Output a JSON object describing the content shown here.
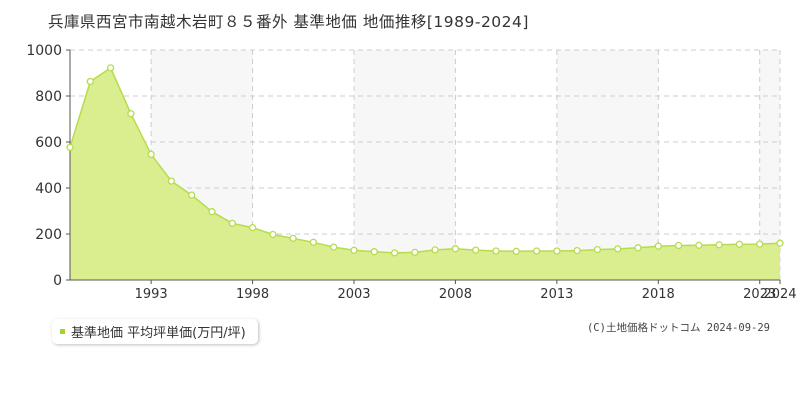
{
  "title": "兵庫県西宮市南越木岩町８５番外 基準地価 地価推移[1989-2024]",
  "legend_label": "基準地価 平均坪単価(万円/坪)",
  "credit": "(C)土地価格ドットコム 2024-09-29",
  "colors": {
    "area_fill": "#dbee8f",
    "line": "#b5dc4e",
    "marker_fill": "#ffffff",
    "marker_stroke": "#b5dc4e",
    "grid": "#cccccc",
    "plot_bg_shade": "#f7f7f7",
    "legend_swatch": "#a6d329"
  },
  "chart_data": {
    "type": "area",
    "x": [
      1989,
      1990,
      1991,
      1992,
      1993,
      1994,
      1995,
      1996,
      1997,
      1998,
      1999,
      2000,
      2001,
      2002,
      2003,
      2004,
      2005,
      2006,
      2007,
      2008,
      2009,
      2010,
      2011,
      2012,
      2013,
      2014,
      2015,
      2016,
      2017,
      2018,
      2019,
      2020,
      2021,
      2022,
      2023,
      2024
    ],
    "series": [
      {
        "values": [
          577,
          863,
          922,
          723,
          546,
          430,
          369,
          297,
          246,
          228,
          198,
          181,
          164,
          143,
          129,
          123,
          118,
          120,
          131,
          136,
          130,
          126,
          125,
          126,
          126,
          128,
          132,
          135,
          140,
          147,
          150,
          151,
          153,
          155,
          156,
          160
        ]
      }
    ],
    "xlim": [
      1989,
      2024
    ],
    "ylim": [
      0,
      1000
    ],
    "y_ticks": [
      0,
      200,
      400,
      600,
      800,
      1000
    ],
    "x_tick_labels": [
      "1993",
      "1998",
      "2003",
      "2008",
      "2013",
      "2018",
      "2023",
      "2024"
    ],
    "x_tick_years": [
      1993,
      1998,
      2003,
      2008,
      2013,
      2018,
      2023,
      2024
    ],
    "grid": true
  }
}
